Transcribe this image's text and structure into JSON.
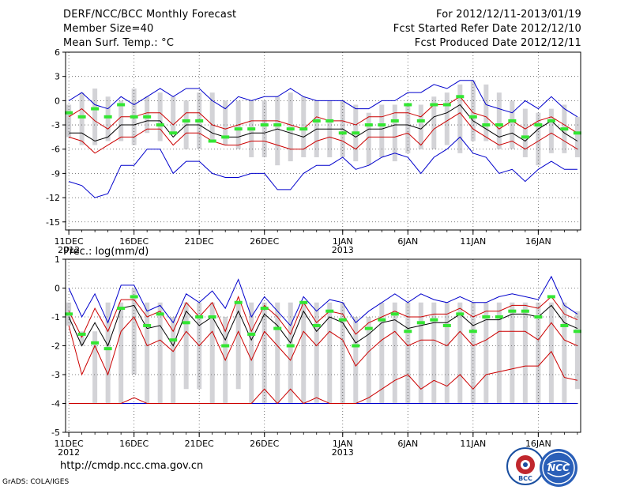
{
  "header": {
    "title": "DERF/NCC/BCC Monthly Forecast",
    "member_size": "Member Size=40",
    "variable": "Mean Surf. Temp.: °C",
    "period": "For 2012/12/11-2013/01/19",
    "started": "Fcst Started Refer Date 2012/12/10",
    "produced": "Fcst Produced Date 2012/12/11"
  },
  "footer": {
    "url": "http://cmdp.ncc.cma.gov.cn",
    "grads": "GrADS: COLA/IGES",
    "logo_bcc": "BCC",
    "logo_ncc": "NCC"
  },
  "colors": {
    "bar": "#d3d3d7",
    "obs": "#33e633",
    "mean": "#000000",
    "inner": "#cc0000",
    "outer": "#0000cc",
    "grid": "#555555"
  },
  "chart_data": [
    {
      "type": "box-ensemble",
      "title": "Mean Surf. Temp.: °C",
      "xlabel": "",
      "ylabel": "",
      "ylim": [
        -16,
        6
      ],
      "yticks": [
        6,
        3,
        0,
        -3,
        -6,
        -9,
        -12,
        -15
      ],
      "ytick_labels": [
        "6",
        "3",
        "0",
        "-3",
        "-6",
        "-9",
        "-12",
        "-15"
      ],
      "x_tick_days": [
        0,
        5,
        10,
        15,
        21,
        26,
        31,
        36
      ],
      "x_tick_labels": [
        "11DEC",
        "16DEC",
        "21DEC",
        "26DEC",
        "1JAN",
        "6JAN",
        "11JAN",
        "16JAN"
      ],
      "x_year_labels": [
        {
          "day": 0,
          "label": "2012"
        },
        {
          "day": 21,
          "label": "2013"
        }
      ],
      "days": 40,
      "bar_low": [
        -4.5,
        -5.5,
        -5.5,
        -5.0,
        -5.0,
        -5.5,
        -4.0,
        -5.0,
        -4.0,
        -6.0,
        -6.0,
        -5.0,
        -5.5,
        -6.0,
        -7.0,
        -7.0,
        -8.0,
        -7.5,
        -7.0,
        -7.0,
        -7.0,
        -7.0,
        -7.5,
        -8.0,
        -7.0,
        -7.5,
        -6.5,
        -6.0,
        -6.0,
        -5.5,
        -6.5,
        -5.0,
        -5.0,
        -6.0,
        -6.0,
        -7.0,
        -8.0,
        -6.5,
        -6.5,
        -7.0
      ],
      "bar_high": [
        -0.5,
        1.0,
        1.5,
        0.5,
        0.0,
        1.5,
        0.5,
        1.0,
        0.5,
        0.0,
        1.0,
        1.0,
        0.0,
        0.0,
        0.0,
        0.0,
        0.5,
        1.0,
        0.5,
        0.0,
        0.0,
        0.0,
        -0.5,
        -1.5,
        -0.5,
        -0.5,
        -0.5,
        -0.5,
        0.5,
        1.0,
        2.0,
        2.5,
        2.0,
        1.0,
        0.0,
        -1.0,
        -1.5,
        -1.0,
        -0.5,
        -2.0
      ],
      "obs": [
        -1.5,
        -2.0,
        -1.0,
        -2.0,
        -0.5,
        -2.0,
        -2.0,
        -3.0,
        -4.0,
        -2.5,
        -2.5,
        -5.0,
        -4.5,
        -3.5,
        -3.5,
        -3.0,
        -3.0,
        -3.5,
        -3.5,
        -2.5,
        -2.5,
        -4.0,
        -4.0,
        -3.0,
        -3.0,
        -2.5,
        -0.5,
        -2.5,
        -0.5,
        -0.5,
        0.5,
        -2.0,
        -3.0,
        -3.0,
        -2.5,
        -4.5,
        -3.0,
        -2.5,
        -3.5,
        -4.0
      ],
      "mean": [
        -4.0,
        -4.0,
        -5.0,
        -4.5,
        -3.0,
        -3.0,
        -2.5,
        -2.5,
        -4.5,
        -3.0,
        -3.0,
        -4.0,
        -4.5,
        -4.5,
        -4.0,
        -4.0,
        -3.5,
        -4.0,
        -4.5,
        -3.5,
        -3.5,
        -3.5,
        -4.5,
        -3.5,
        -3.5,
        -3.0,
        -3.0,
        -3.5,
        -2.0,
        -1.5,
        -0.5,
        -2.5,
        -3.5,
        -4.5,
        -4.0,
        -5.0,
        -3.5,
        -2.5,
        -4.0,
        -5.0
      ],
      "inner_upper": [
        -2.0,
        -1.0,
        -2.5,
        -3.5,
        -2.0,
        -2.0,
        -1.5,
        -1.5,
        -3.0,
        -1.5,
        -1.5,
        -3.0,
        -3.5,
        -3.0,
        -2.5,
        -2.5,
        -2.5,
        -3.0,
        -3.5,
        -2.0,
        -2.5,
        -2.5,
        -3.0,
        -2.0,
        -2.0,
        -1.5,
        -1.5,
        -2.0,
        -0.5,
        -0.5,
        0.5,
        -1.5,
        -2.0,
        -3.5,
        -2.5,
        -3.5,
        -2.5,
        -2.0,
        -3.0,
        -4.0
      ],
      "inner_lower": [
        -4.5,
        -5.0,
        -6.5,
        -5.5,
        -4.5,
        -4.5,
        -3.5,
        -3.5,
        -5.5,
        -4.0,
        -4.0,
        -5.0,
        -5.5,
        -5.5,
        -5.0,
        -5.0,
        -5.5,
        -6.0,
        -6.0,
        -5.0,
        -4.5,
        -5.0,
        -6.0,
        -4.5,
        -4.5,
        -4.5,
        -4.0,
        -5.5,
        -3.5,
        -2.5,
        -1.5,
        -3.5,
        -4.5,
        -5.5,
        -5.0,
        -6.0,
        -5.0,
        -4.0,
        -5.0,
        -6.0
      ],
      "outer_upper": [
        0.0,
        1.0,
        -0.5,
        -1.0,
        0.5,
        -0.5,
        0.5,
        1.5,
        0.5,
        1.5,
        1.5,
        0.0,
        -1.0,
        0.5,
        0.0,
        0.5,
        0.5,
        1.5,
        0.5,
        0.0,
        0.0,
        0.0,
        -1.0,
        -1.0,
        0.0,
        0.0,
        1.0,
        1.0,
        2.0,
        1.5,
        2.5,
        2.5,
        -0.5,
        -1.0,
        -1.5,
        0.0,
        -1.0,
        0.5,
        -1.0,
        -2.0
      ],
      "outer_lower": [
        -10.0,
        -10.5,
        -12.0,
        -11.5,
        -8.0,
        -8.0,
        -6.0,
        -6.0,
        -9.0,
        -7.5,
        -7.5,
        -9.0,
        -9.5,
        -9.5,
        -9.0,
        -9.0,
        -11.0,
        -11.0,
        -9.0,
        -8.0,
        -8.0,
        -7.0,
        -8.5,
        -8.0,
        -7.0,
        -6.5,
        -7.0,
        -9.0,
        -7.0,
        -6.0,
        -4.5,
        -6.5,
        -7.0,
        -9.0,
        -8.5,
        -10.0,
        -8.5,
        -7.5,
        -8.5,
        -8.5
      ]
    },
    {
      "type": "box-ensemble",
      "title": "Prec.: log(mm/d)",
      "xlabel": "",
      "ylabel": "",
      "ylim": [
        -5,
        1
      ],
      "yticks": [
        1,
        0,
        -1,
        -2,
        -3,
        -4,
        -5
      ],
      "ytick_labels": [
        "1",
        "0",
        "-1",
        "-2",
        "-3",
        "-4",
        "-5"
      ],
      "x_tick_days": [
        0,
        5,
        10,
        15,
        21,
        26,
        31,
        36
      ],
      "x_tick_labels": [
        "11DEC",
        "16DEC",
        "21DEC",
        "26DEC",
        "1JAN",
        "6JAN",
        "11JAN",
        "16JAN"
      ],
      "x_year_labels": [
        {
          "day": 0,
          "label": "2012"
        },
        {
          "day": 21,
          "label": "2013"
        }
      ],
      "days": 40,
      "bar_low": [
        -1.3,
        -2.0,
        -4.0,
        -4.0,
        -4.0,
        -3.0,
        -4.0,
        -4.0,
        -4.0,
        -3.5,
        -3.5,
        -4.0,
        -4.0,
        -3.5,
        -4.0,
        -4.0,
        -4.0,
        -4.0,
        -4.0,
        -4.0,
        -4.0,
        -4.0,
        -4.0,
        -4.0,
        -4.0,
        -4.0,
        -4.0,
        -4.0,
        -4.0,
        -4.0,
        -4.0,
        -4.0,
        -4.0,
        -4.0,
        -4.0,
        -4.0,
        -4.0,
        -4.0,
        -4.0,
        -3.5
      ],
      "bar_high": [
        -0.5,
        -1.5,
        -1.5,
        -0.5,
        -0.5,
        0.0,
        -0.5,
        -0.5,
        -1.0,
        -0.5,
        -0.5,
        -0.5,
        -1.0,
        -0.5,
        -0.5,
        -0.5,
        -0.5,
        -0.5,
        -0.5,
        -0.5,
        -0.5,
        -0.5,
        -1.0,
        -1.0,
        -0.5,
        -0.5,
        -0.5,
        -0.5,
        -0.5,
        -0.5,
        -0.5,
        -0.5,
        -0.5,
        -0.5,
        -0.5,
        -0.5,
        -0.5,
        -0.5,
        -0.5,
        -0.8
      ],
      "obs": [
        -0.9,
        -1.6,
        -1.9,
        -2.1,
        -0.7,
        -0.3,
        -1.3,
        -0.9,
        -1.8,
        -1.2,
        -1.0,
        -1.0,
        -2.0,
        -0.5,
        -1.6,
        -0.7,
        -1.4,
        -2.0,
        -0.5,
        -1.3,
        -0.8,
        -1.1,
        -2.0,
        -1.4,
        -1.1,
        -0.9,
        -1.5,
        -1.2,
        -1.1,
        -1.3,
        -0.9,
        -1.5,
        -1.0,
        -1.0,
        -0.8,
        -0.8,
        -1.0,
        -0.3,
        -1.3,
        -1.5
      ],
      "mean": [
        -1.0,
        -2.0,
        -1.2,
        -2.0,
        -0.7,
        -0.6,
        -1.4,
        -1.3,
        -2.0,
        -0.8,
        -1.3,
        -1.0,
        -1.8,
        -0.8,
        -1.8,
        -0.9,
        -1.3,
        -1.9,
        -0.8,
        -1.5,
        -1.0,
        -1.2,
        -1.9,
        -1.6,
        -1.2,
        -1.1,
        -1.4,
        -1.3,
        -1.2,
        -1.2,
        -0.9,
        -1.3,
        -1.1,
        -1.1,
        -0.9,
        -0.9,
        -1.0,
        -0.6,
        -1.2,
        -1.4
      ],
      "inner_upper": [
        -0.8,
        -1.7,
        -0.7,
        -1.5,
        -0.4,
        -0.4,
        -1.0,
        -0.8,
        -1.5,
        -0.5,
        -1.0,
        -0.5,
        -1.5,
        -0.3,
        -1.5,
        -0.6,
        -1.0,
        -1.6,
        -0.5,
        -1.2,
        -0.8,
        -0.9,
        -1.6,
        -1.2,
        -1.0,
        -0.8,
        -1.0,
        -1.0,
        -0.9,
        -0.9,
        -0.7,
        -1.0,
        -0.8,
        -0.8,
        -0.6,
        -0.6,
        -0.7,
        -0.3,
        -0.9,
        -1.1
      ],
      "inner_lower": [
        -1.3,
        -3.0,
        -2.0,
        -3.0,
        -1.5,
        -1.0,
        -2.0,
        -1.8,
        -2.2,
        -1.5,
        -2.0,
        -1.5,
        -2.5,
        -1.5,
        -2.5,
        -1.5,
        -2.0,
        -2.5,
        -1.5,
        -2.0,
        -1.5,
        -1.8,
        -2.7,
        -2.2,
        -1.8,
        -1.5,
        -2.0,
        -1.8,
        -1.8,
        -2.0,
        -1.5,
        -2.0,
        -1.8,
        -1.5,
        -1.5,
        -1.5,
        -1.8,
        -1.2,
        -1.8,
        -2.0
      ],
      "outer_upper": [
        0.0,
        -1.0,
        -0.2,
        -1.2,
        0.1,
        0.1,
        -0.8,
        -0.6,
        -1.2,
        -0.2,
        -0.5,
        -0.1,
        -0.7,
        0.3,
        -1.0,
        -0.3,
        -0.8,
        -1.3,
        -0.3,
        -0.8,
        -0.4,
        -0.5,
        -1.2,
        -0.8,
        -0.5,
        -0.2,
        -0.5,
        -0.2,
        -0.4,
        -0.5,
        -0.3,
        -0.5,
        -0.5,
        -0.3,
        -0.2,
        -0.3,
        -0.4,
        0.4,
        -0.6,
        -0.9
      ],
      "outer_lower": [
        -4.0,
        -4.0,
        -4.0,
        -4.0,
        -4.0,
        -4.0,
        -4.0,
        -4.0,
        -4.0,
        -4.0,
        -4.0,
        -4.0,
        -4.0,
        -4.0,
        -4.0,
        -4.0,
        -4.0,
        -4.0,
        -4.0,
        -4.0,
        -4.0,
        -4.0,
        -4.0,
        -4.0,
        -4.0,
        -4.0,
        -4.0,
        -4.0,
        -4.0,
        -4.0,
        -4.0,
        -4.0,
        -4.0,
        -4.0,
        -4.0,
        -4.0,
        -4.0,
        -4.0,
        -4.0,
        -4.0
      ],
      "min_line": [
        -4.0,
        -4.0,
        -4.0,
        -4.0,
        -4.0,
        -3.8,
        -4.0,
        -4.0,
        -4.0,
        -4.0,
        -4.0,
        -4.0,
        -4.0,
        -4.0,
        -4.0,
        -3.5,
        -4.0,
        -3.5,
        -4.0,
        -3.8,
        -4.0,
        -4.0,
        -4.0,
        -3.8,
        -3.5,
        -3.2,
        -3.0,
        -3.5,
        -3.2,
        -3.4,
        -3.0,
        -3.5,
        -3.0,
        -2.9,
        -2.8,
        -2.7,
        -2.7,
        -2.2,
        -3.1,
        -3.2
      ]
    }
  ]
}
